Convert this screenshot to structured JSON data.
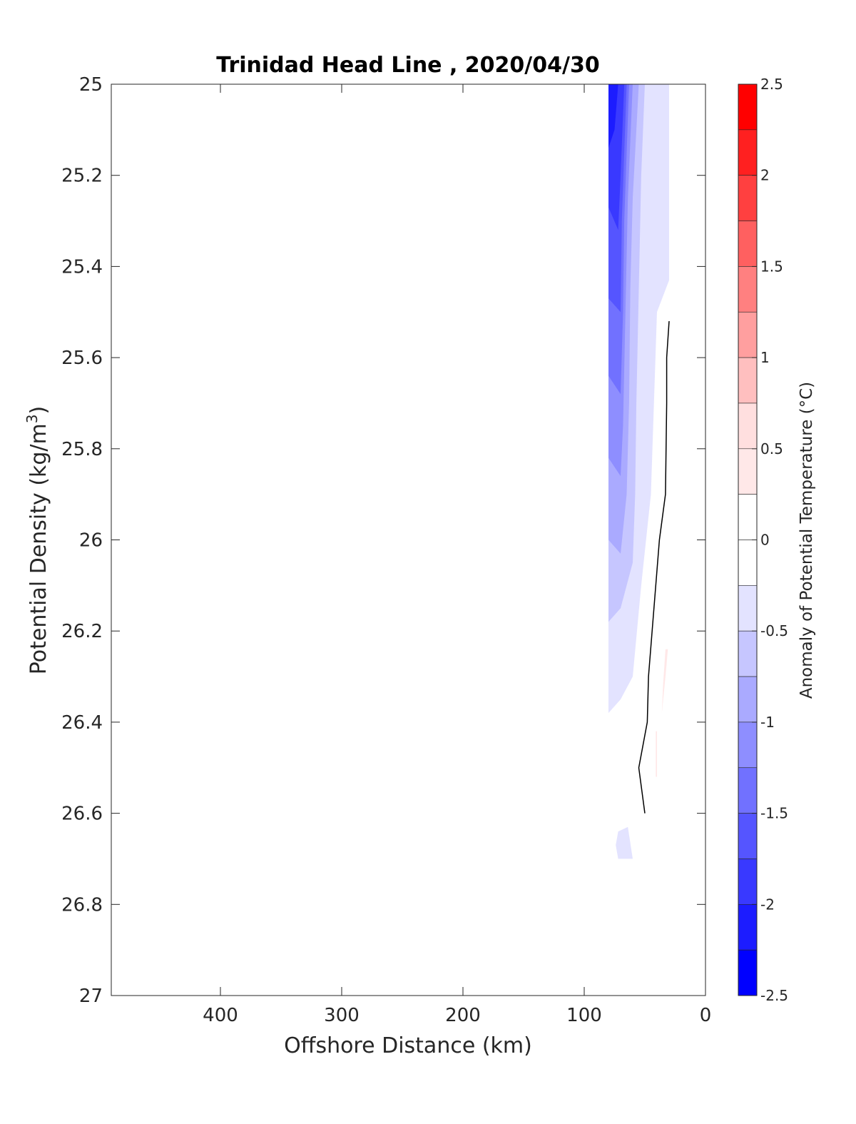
{
  "chart_data": {
    "type": "contour",
    "title": "Trinidad Head Line , 2020/04/30",
    "xlabel": "Offshore Distance (km)",
    "ylabel_main": "Potential Density (kg/m",
    "ylabel_sup": "3",
    "ylabel_end": ")",
    "xlim": [
      490,
      0
    ],
    "x_reversed": true,
    "ylim": [
      25,
      27
    ],
    "y_reversed": true,
    "x_ticks": [
      400,
      300,
      200,
      100,
      0
    ],
    "y_ticks": [
      25,
      25.2,
      25.4,
      25.6,
      25.8,
      26,
      26.2,
      26.4,
      26.6,
      26.8,
      27
    ],
    "y_tick_labels": [
      "25",
      "25.2",
      "25.4",
      "25.6",
      "25.8",
      "26",
      "26.2",
      "26.4",
      "26.6",
      "26.8",
      "27"
    ],
    "colorbar": {
      "label": "Anomaly of Potential Temperature (°C)",
      "range": [
        -2.5,
        2.5
      ],
      "ticks": [
        2.5,
        2,
        1.5,
        1,
        0.5,
        0,
        -0.5,
        -1,
        -1.5,
        -2,
        -2.5
      ],
      "tick_labels": [
        "2.5",
        "2",
        "1.5",
        "1",
        "0.5",
        "0",
        "-0.5",
        "-1",
        "-1.5",
        "-2",
        "-2.5"
      ],
      "levels": [
        {
          "from": 2.25,
          "to": 2.5,
          "color": "#ff0000"
        },
        {
          "from": 2.0,
          "to": 2.25,
          "color": "#ff2020"
        },
        {
          "from": 1.75,
          "to": 2.0,
          "color": "#ff4040"
        },
        {
          "from": 1.5,
          "to": 1.75,
          "color": "#ff6060"
        },
        {
          "from": 1.25,
          "to": 1.5,
          "color": "#ff8080"
        },
        {
          "from": 1.0,
          "to": 1.25,
          "color": "#ff9f9f"
        },
        {
          "from": 0.75,
          "to": 1.0,
          "color": "#ffbfbf"
        },
        {
          "from": 0.5,
          "to": 0.75,
          "color": "#ffdfdf"
        },
        {
          "from": 0.25,
          "to": 0.5,
          "color": "#ffe8e8"
        },
        {
          "from": 0.0,
          "to": 0.25,
          "color": "#ffffff"
        },
        {
          "from": -0.25,
          "to": 0.0,
          "color": "#ffffff"
        },
        {
          "from": -0.5,
          "to": -0.25,
          "color": "#e3e3ff"
        },
        {
          "from": -0.75,
          "to": -0.5,
          "color": "#c6c6ff"
        },
        {
          "from": -1.0,
          "to": -0.75,
          "color": "#aaaaff"
        },
        {
          "from": -1.25,
          "to": -1.0,
          "color": "#8e8eff"
        },
        {
          "from": -1.5,
          "to": -1.25,
          "color": "#7171ff"
        },
        {
          "from": -1.75,
          "to": -1.5,
          "color": "#5555ff"
        },
        {
          "from": -2.0,
          "to": -1.75,
          "color": "#3939ff"
        },
        {
          "from": -2.25,
          "to": -2.0,
          "color": "#1c1cff"
        },
        {
          "from": -2.5,
          "to": -2.25,
          "color": "#0000ff"
        }
      ]
    },
    "filled_regions": [
      {
        "level": -0.375,
        "color": "#e3e3ff",
        "points": [
          [
            80,
            25
          ],
          [
            30,
            25
          ],
          [
            30,
            25.14
          ],
          [
            30,
            25.43
          ],
          [
            40,
            25.5
          ],
          [
            45,
            25.9
          ],
          [
            53,
            26.1
          ],
          [
            60,
            26.3
          ],
          [
            70,
            26.35
          ],
          [
            80,
            26.38
          ]
        ]
      },
      {
        "level": -0.625,
        "color": "#c6c6ff",
        "points": [
          [
            80,
            25
          ],
          [
            50,
            25
          ],
          [
            53,
            25.2
          ],
          [
            55,
            25.45
          ],
          [
            57,
            25.7
          ],
          [
            58,
            25.9
          ],
          [
            60,
            26.05
          ],
          [
            70,
            26.15
          ],
          [
            80,
            26.18
          ]
        ]
      },
      {
        "level": -0.875,
        "color": "#aaaaff",
        "points": [
          [
            80,
            25
          ],
          [
            55,
            25
          ],
          [
            60,
            25.25
          ],
          [
            62,
            25.45
          ],
          [
            63,
            25.7
          ],
          [
            65,
            25.9
          ],
          [
            70,
            26.03
          ],
          [
            80,
            26.0
          ]
        ]
      },
      {
        "level": -1.125,
        "color": "#8e8eff",
        "points": [
          [
            80,
            25
          ],
          [
            60,
            25
          ],
          [
            64,
            25.25
          ],
          [
            66,
            25.5
          ],
          [
            68,
            25.75
          ],
          [
            70,
            25.86
          ],
          [
            80,
            25.82
          ]
        ]
      },
      {
        "level": -1.375,
        "color": "#7171ff",
        "points": [
          [
            80,
            25
          ],
          [
            63,
            25
          ],
          [
            67,
            25.3
          ],
          [
            68,
            25.5
          ],
          [
            70,
            25.68
          ],
          [
            80,
            25.64
          ]
        ]
      },
      {
        "level": -1.625,
        "color": "#5555ff",
        "points": [
          [
            80,
            25
          ],
          [
            65,
            25
          ],
          [
            69,
            25.3
          ],
          [
            70,
            25.5
          ],
          [
            80,
            25.47
          ]
        ]
      },
      {
        "level": -1.875,
        "color": "#3939ff",
        "points": [
          [
            80,
            25
          ],
          [
            67,
            25
          ],
          [
            70,
            25.2
          ],
          [
            72,
            25.32
          ],
          [
            80,
            25.27
          ]
        ]
      },
      {
        "level": -2.125,
        "color": "#1c1cff",
        "points": [
          [
            80,
            25
          ],
          [
            72,
            25
          ],
          [
            75,
            25.1
          ],
          [
            80,
            25.14
          ]
        ]
      },
      {
        "level": -0.375,
        "color": "#e3e3ff",
        "points": [
          [
            72,
            26.64
          ],
          [
            64,
            26.63
          ],
          [
            60,
            26.7
          ],
          [
            72,
            26.7
          ],
          [
            74,
            26.67
          ]
        ]
      },
      {
        "level": 0.375,
        "color": "#ffe8e8",
        "points": [
          [
            33,
            26.24
          ],
          [
            31,
            26.24
          ],
          [
            33,
            26.3
          ],
          [
            36,
            26.38
          ],
          [
            35,
            26.32
          ]
        ]
      },
      {
        "level": 0.375,
        "color": "#ffe8e8",
        "points": [
          [
            41,
            26.42
          ],
          [
            40,
            26.42
          ],
          [
            40,
            26.52
          ],
          [
            41,
            26.52
          ]
        ]
      }
    ],
    "contour_lines": [
      {
        "level": 0,
        "color": "#000000",
        "points": [
          [
            30,
            25.52
          ],
          [
            32,
            25.6
          ],
          [
            32,
            25.7
          ],
          [
            33,
            25.9
          ],
          [
            38,
            26.0
          ],
          [
            47,
            26.3
          ],
          [
            48,
            26.4
          ],
          [
            55,
            26.5
          ],
          [
            50,
            26.6
          ]
        ]
      }
    ]
  }
}
